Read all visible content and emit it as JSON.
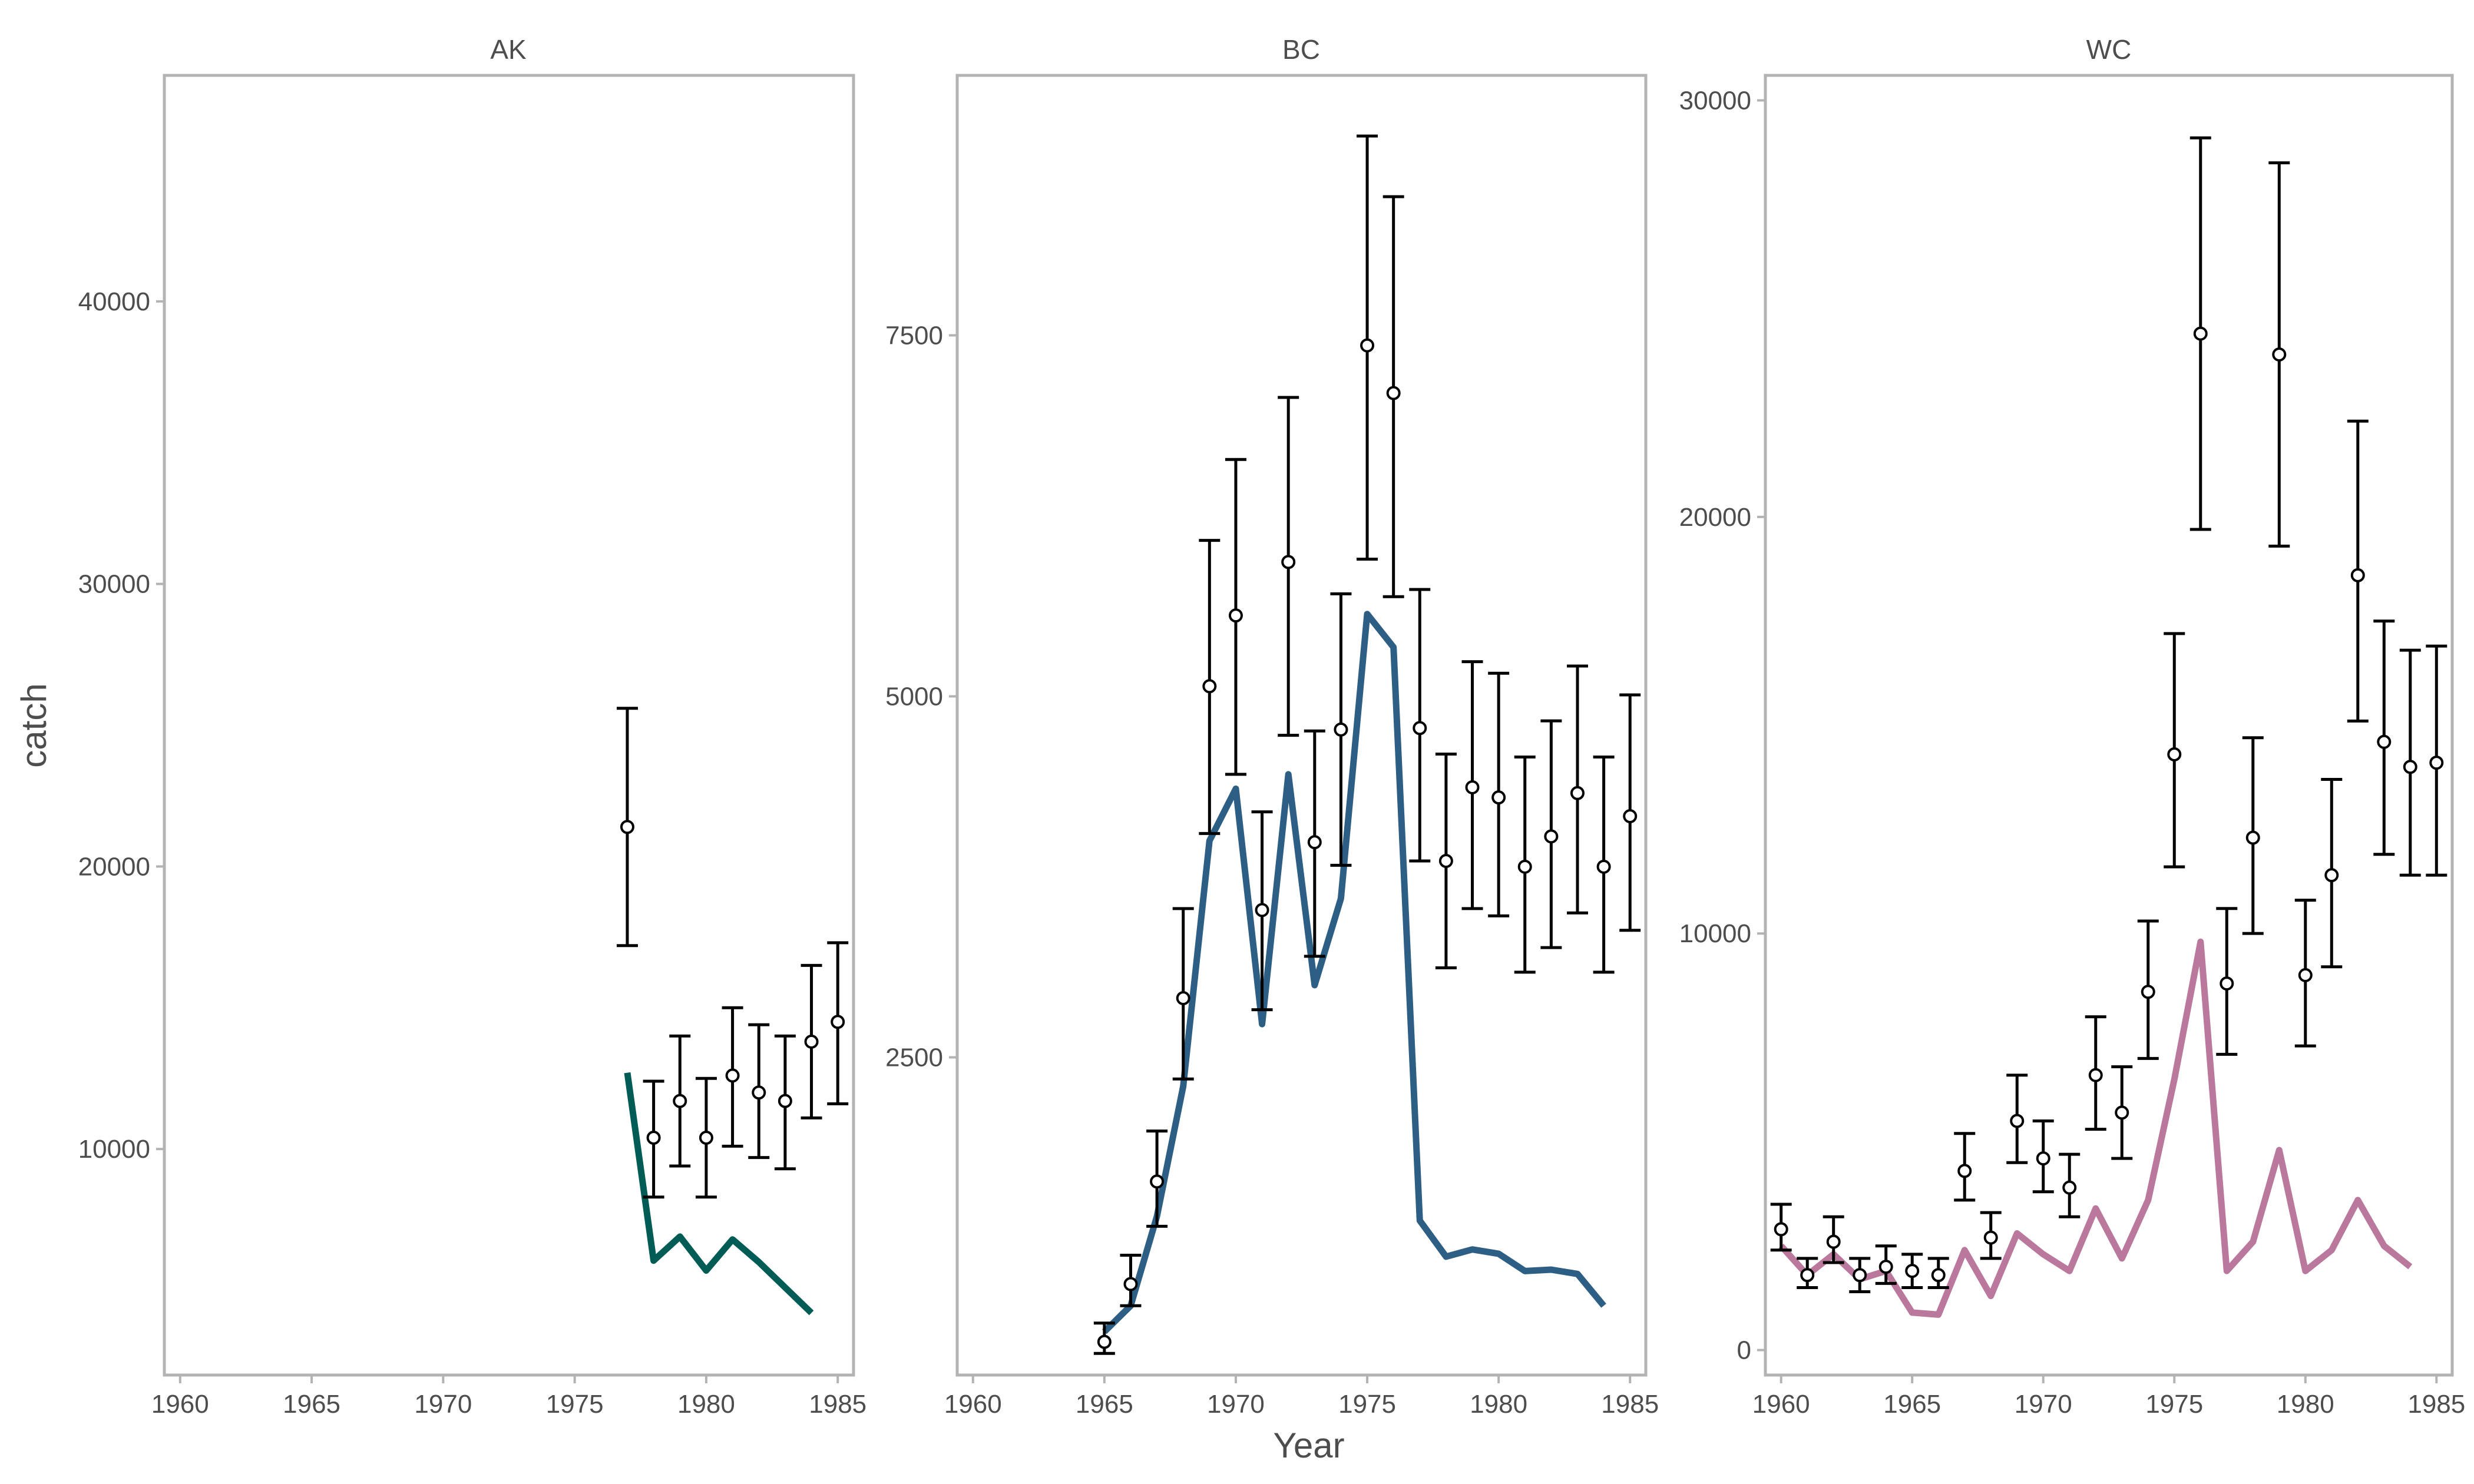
{
  "chart_data": {
    "type": "line",
    "xlabel": "Year",
    "ylabel": "catch",
    "x_ticks": [
      1960,
      1965,
      1970,
      1975,
      1980,
      1985
    ],
    "xlim": [
      1959.4,
      1985.6
    ],
    "grid": false,
    "legend": "none",
    "panels": [
      {
        "title": "AK",
        "color": "#015c55",
        "ylim": [
          2000,
          48000
        ],
        "y_ticks": [
          10000,
          20000,
          30000,
          40000
        ],
        "line": {
          "x": [
            1977,
            1978,
            1979,
            1980,
            1981,
            1982,
            1983,
            1984
          ],
          "y": [
            12700,
            6050,
            6900,
            5700,
            6800,
            6000,
            5100,
            4200
          ]
        },
        "points": {
          "x": [
            1977,
            1978,
            1979,
            1980,
            1981,
            1982,
            1983,
            1984,
            1985
          ],
          "y": [
            21400,
            10400,
            11700,
            10400,
            12600,
            12000,
            11700,
            13800,
            14500
          ],
          "lower": [
            17200,
            8300,
            9400,
            8300,
            10100,
            9700,
            9300,
            11100,
            11600
          ],
          "upper": [
            25600,
            12400,
            14000,
            12500,
            15000,
            14400,
            14000,
            16500,
            17300
          ]
        }
      },
      {
        "title": "BC",
        "color": "#2d5f84",
        "ylim": [
          300,
          9300
        ],
        "y_ticks": [
          2500,
          5000,
          7500
        ],
        "line": {
          "x": [
            1965,
            1966,
            1967,
            1968,
            1969,
            1970,
            1971,
            1972,
            1973,
            1974,
            1975,
            1976,
            1977,
            1978,
            1979,
            1980,
            1981,
            1982,
            1983,
            1984
          ],
          "y": [
            600,
            780,
            1400,
            2300,
            4000,
            4360,
            2730,
            4460,
            3000,
            3600,
            5570,
            5340,
            1370,
            1120,
            1170,
            1140,
            1020,
            1030,
            1000,
            780
          ]
        },
        "points": {
          "x": [
            1965,
            1966,
            1967,
            1968,
            1969,
            1970,
            1971,
            1972,
            1973,
            1974,
            1975,
            1976,
            1977,
            1978,
            1979,
            1980,
            1981,
            1982,
            1983,
            1984,
            1985
          ],
          "y": [
            530,
            930,
            1640,
            2910,
            5070,
            5560,
            3520,
            5930,
            3990,
            4770,
            7430,
            7100,
            4780,
            3860,
            4370,
            4300,
            3820,
            4030,
            4330,
            3820,
            4170
          ],
          "lower": [
            450,
            780,
            1330,
            2350,
            4050,
            4460,
            2830,
            4730,
            3200,
            3830,
            5950,
            5690,
            3860,
            3120,
            3530,
            3480,
            3090,
            3260,
            3500,
            3090,
            3380
          ],
          "upper": [
            660,
            1130,
            1990,
            3530,
            6080,
            6640,
            4200,
            7070,
            4760,
            5710,
            8880,
            8460,
            5740,
            4600,
            5240,
            5160,
            4580,
            4830,
            5210,
            4580,
            5010
          ]
        }
      },
      {
        "title": "WC",
        "color": "#b9789c",
        "ylim": [
          -600,
          30600
        ],
        "y_ticks": [
          0,
          10000,
          20000,
          30000
        ],
        "line": {
          "x": [
            1960,
            1961,
            1962,
            1963,
            1964,
            1965,
            1966,
            1967,
            1968,
            1969,
            1970,
            1971,
            1972,
            1973,
            1974,
            1975,
            1976,
            1977,
            1978,
            1979,
            1980,
            1981,
            1982,
            1983,
            1984
          ],
          "y": [
            2500,
            1800,
            2300,
            1700,
            1900,
            900,
            850,
            2400,
            1300,
            2800,
            2300,
            1900,
            3400,
            2200,
            3600,
            6500,
            9800,
            1900,
            2600,
            4800,
            1900,
            2400,
            3600,
            2500,
            2000
          ]
        },
        "points": {
          "x": [
            1960,
            1961,
            1962,
            1963,
            1964,
            1965,
            1966,
            1967,
            1968,
            1969,
            1970,
            1971,
            1972,
            1973,
            1974,
            1975,
            1976,
            1977,
            1978,
            1979,
            1980,
            1981,
            1982,
            1983,
            1984,
            1985
          ],
          "y": [
            2900,
            1800,
            2600,
            1800,
            2000,
            1900,
            1800,
            4300,
            2700,
            5500,
            4600,
            3900,
            6600,
            5700,
            8600,
            14300,
            24400,
            8800,
            12300,
            23900,
            9000,
            11400,
            18600,
            14600,
            14000,
            14100
          ],
          "lower": [
            2400,
            1500,
            2100,
            1400,
            1600,
            1500,
            1500,
            3600,
            2200,
            4500,
            3800,
            3200,
            5300,
            4600,
            7000,
            11600,
            19700,
            7100,
            10000,
            19300,
            7300,
            9200,
            15100,
            11900,
            11400,
            11400
          ],
          "upper": [
            3500,
            2200,
            3200,
            2200,
            2500,
            2300,
            2200,
            5200,
            3300,
            6600,
            5500,
            4700,
            8000,
            6800,
            10300,
            17200,
            29100,
            10600,
            14700,
            28500,
            10800,
            13700,
            22300,
            17500,
            16800,
            16900
          ]
        }
      }
    ]
  }
}
